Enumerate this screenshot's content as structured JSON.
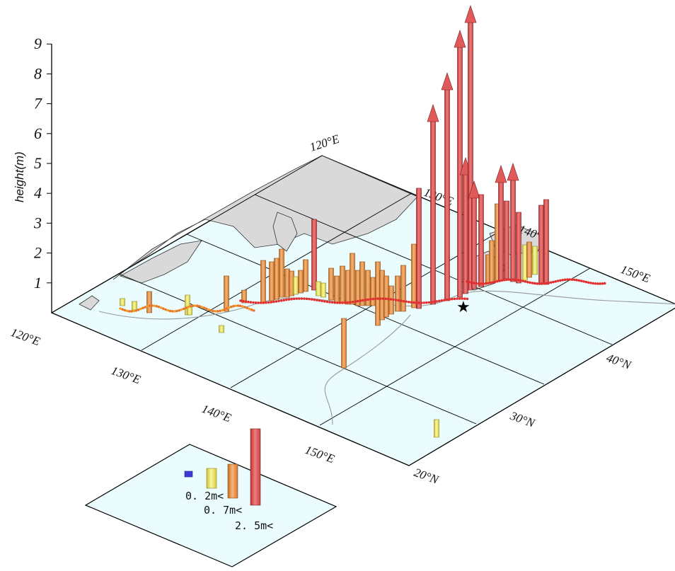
{
  "vertical_axis": {
    "label": "height(m)",
    "ticks": [
      "1",
      "2",
      "3",
      "4",
      "5",
      "6",
      "7",
      "8",
      "9"
    ]
  },
  "map_labels": {
    "top_120E": "120°E",
    "top_130E": "130°E",
    "top_140E": "140°E",
    "top_150E": "150°E",
    "left_120E": "120°E",
    "bottom_130E": "130°E",
    "bottom_140E": "140°E",
    "bottom_150E": "150°E",
    "right_40N": "40°N",
    "right_30N": "30°N",
    "right_20N": "20°N"
  },
  "legend": {
    "items": [
      {
        "label": "",
        "color": "#3b3bd6"
      },
      {
        "label": "0. 2m<",
        "color": "#f5ee5a"
      },
      {
        "label": "0. 7m<",
        "color": "#ef9a4a"
      },
      {
        "label": "2. 5m<",
        "color": "#e85d5d"
      }
    ]
  },
  "colors": {
    "sea": "#eafcfd",
    "land": "#d9d9d9",
    "class_blue": "#3b3bd6",
    "class_yellow": "#f5ee5a",
    "class_orange": "#ef9a4a",
    "class_red": "#e85d5d"
  }
}
